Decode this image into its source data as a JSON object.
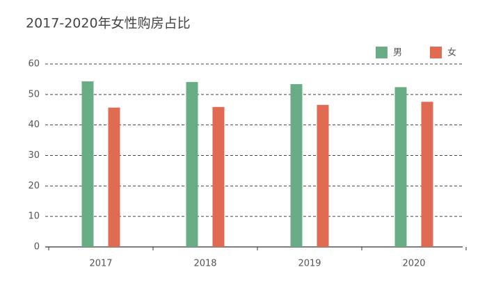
{
  "chart_data": {
    "type": "bar",
    "title": "2017-2020年女性购房占比",
    "categories": [
      "2017",
      "2018",
      "2019",
      "2020"
    ],
    "series": [
      {
        "name": "男",
        "color": "#68ad86",
        "values": [
          54.3,
          54.1,
          53.4,
          52.4
        ]
      },
      {
        "name": "女",
        "color": "#e06a52",
        "values": [
          45.7,
          45.9,
          46.6,
          47.6
        ]
      }
    ],
    "ylim": [
      0,
      60
    ],
    "yticks": [
      0,
      10,
      20,
      30,
      40,
      50,
      60
    ],
    "grid": true,
    "legend": "top-right"
  }
}
